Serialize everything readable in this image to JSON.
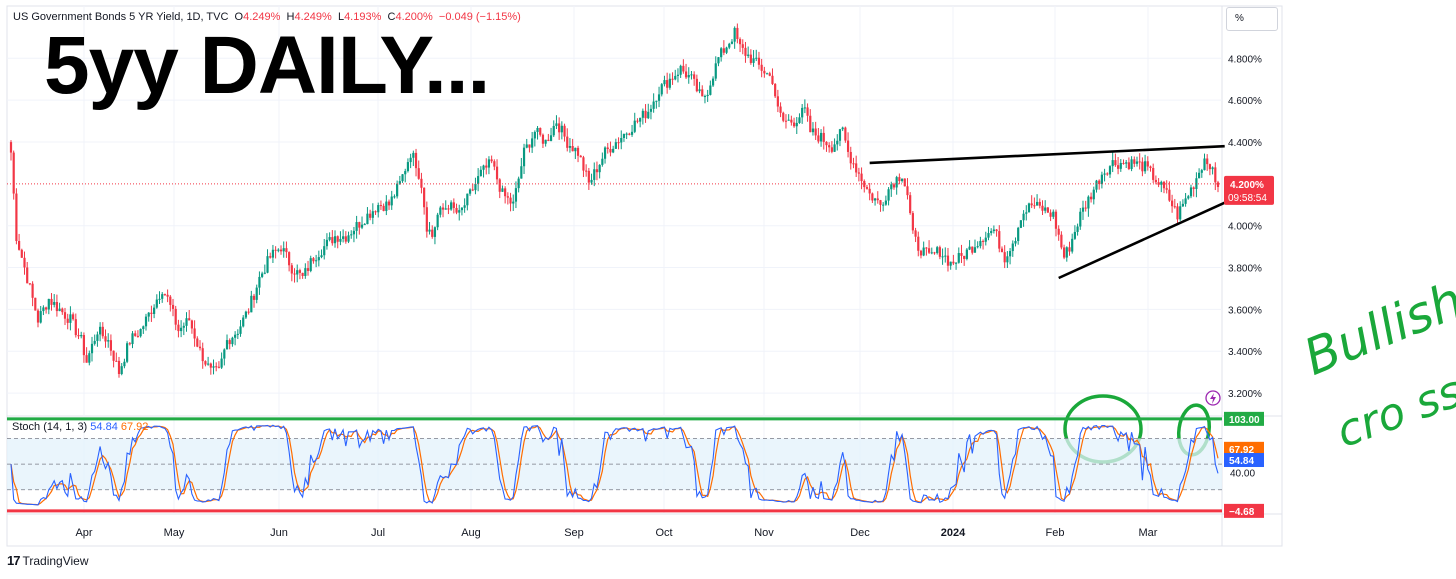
{
  "header": {
    "symbol": "US Government Bonds 5 YR Yield, 1D, TVC",
    "o_label": "O",
    "o_value": "4.249%",
    "h_label": "H",
    "h_value": "4.249%",
    "l_label": "L",
    "l_value": "4.193%",
    "c_label": "C",
    "c_value": "4.200%",
    "change": "−0.049 (−1.15%)"
  },
  "annotation_title": "5yy DAILY...",
  "handwritten_note": [
    "Bullish",
    "cro ss..."
  ],
  "unit_button": "%",
  "brand": {
    "logo": "17",
    "name": "TradingView"
  },
  "colors": {
    "up": "#089981",
    "down": "#f23645",
    "k_line": "#2962ff",
    "d_line": "#ff6d00",
    "upper_line": "#22ab45",
    "lower_line": "#f23645",
    "note": "#1aa83a"
  },
  "chart_data": [
    {
      "type": "candlestick",
      "ylim": [
        3.1,
        5.05
      ],
      "y_ticks": [
        "4.800%",
        "4.600%",
        "4.400%",
        "4.000%",
        "3.800%",
        "3.600%",
        "3.400%",
        "3.200%"
      ],
      "y_tick_values": [
        4.8,
        4.6,
        4.4,
        4.0,
        3.8,
        3.6,
        3.4,
        3.2
      ],
      "x_ticks": [
        "Apr",
        "May",
        "Jun",
        "Jul",
        "Aug",
        "Sep",
        "Oct",
        "Nov",
        "Dec",
        "2024",
        "Feb",
        "Mar"
      ],
      "last_price": 4.2,
      "last_price_label": "4.200%",
      "countdown": "09:58:54",
      "close_path": [
        [
          0,
          4.35
        ],
        [
          2,
          3.95
        ],
        [
          6,
          3.75
        ],
        [
          10,
          3.55
        ],
        [
          14,
          3.65
        ],
        [
          18,
          3.6
        ],
        [
          22,
          3.55
        ],
        [
          26,
          3.45
        ],
        [
          28,
          3.35
        ],
        [
          32,
          3.5
        ],
        [
          36,
          3.45
        ],
        [
          40,
          3.3
        ],
        [
          44,
          3.45
        ],
        [
          48,
          3.5
        ],
        [
          52,
          3.6
        ],
        [
          56,
          3.7
        ],
        [
          58,
          3.65
        ],
        [
          62,
          3.5
        ],
        [
          66,
          3.55
        ],
        [
          70,
          3.4
        ],
        [
          74,
          3.3
        ],
        [
          77,
          3.3
        ],
        [
          80,
          3.45
        ],
        [
          84,
          3.5
        ],
        [
          88,
          3.6
        ],
        [
          92,
          3.75
        ],
        [
          96,
          3.85
        ],
        [
          100,
          3.9
        ],
        [
          104,
          3.8
        ],
        [
          108,
          3.75
        ],
        [
          112,
          3.85
        ],
        [
          116,
          3.9
        ],
        [
          120,
          3.95
        ],
        [
          124,
          3.95
        ],
        [
          128,
          4.0
        ],
        [
          132,
          4.05
        ],
        [
          136,
          4.1
        ],
        [
          140,
          4.1
        ],
        [
          144,
          4.2
        ],
        [
          148,
          4.35
        ],
        [
          150,
          4.3
        ],
        [
          152,
          4.2
        ],
        [
          154,
          4.0
        ],
        [
          156,
          3.95
        ],
        [
          158,
          4.05
        ],
        [
          162,
          4.1
        ],
        [
          166,
          4.05
        ],
        [
          170,
          4.15
        ],
        [
          174,
          4.25
        ],
        [
          178,
          4.3
        ],
        [
          182,
          4.15
        ],
        [
          186,
          4.1
        ],
        [
          190,
          4.35
        ],
        [
          194,
          4.45
        ],
        [
          198,
          4.4
        ],
        [
          202,
          4.5
        ],
        [
          206,
          4.4
        ],
        [
          210,
          4.35
        ],
        [
          214,
          4.2
        ],
        [
          216,
          4.25
        ],
        [
          220,
          4.35
        ],
        [
          224,
          4.4
        ],
        [
          228,
          4.45
        ],
        [
          232,
          4.5
        ],
        [
          236,
          4.55
        ],
        [
          240,
          4.65
        ],
        [
          244,
          4.7
        ],
        [
          248,
          4.75
        ],
        [
          252,
          4.7
        ],
        [
          256,
          4.6
        ],
        [
          258,
          4.65
        ],
        [
          262,
          4.8
        ],
        [
          266,
          4.88
        ],
        [
          268,
          4.92
        ],
        [
          270,
          4.85
        ],
        [
          274,
          4.8
        ],
        [
          278,
          4.75
        ],
        [
          282,
          4.7
        ],
        [
          284,
          4.55
        ],
        [
          286,
          4.5
        ],
        [
          290,
          4.5
        ],
        [
          294,
          4.55
        ],
        [
          296,
          4.45
        ],
        [
          300,
          4.42
        ],
        [
          304,
          4.38
        ],
        [
          308,
          4.45
        ],
        [
          310,
          4.35
        ],
        [
          312,
          4.3
        ],
        [
          314,
          4.25
        ],
        [
          316,
          4.2
        ],
        [
          318,
          4.15
        ],
        [
          322,
          4.1
        ],
        [
          326,
          4.2
        ],
        [
          330,
          4.25
        ],
        [
          332,
          4.15
        ],
        [
          334,
          3.95
        ],
        [
          336,
          3.9
        ],
        [
          340,
          3.85
        ],
        [
          344,
          3.88
        ],
        [
          348,
          3.82
        ],
        [
          352,
          3.85
        ],
        [
          356,
          3.9
        ],
        [
          360,
          3.95
        ],
        [
          364,
          3.98
        ],
        [
          368,
          3.85
        ],
        [
          372,
          3.95
        ],
        [
          374,
          4.05
        ],
        [
          378,
          4.1
        ],
        [
          382,
          4.08
        ],
        [
          386,
          4.05
        ],
        [
          388,
          3.95
        ],
        [
          390,
          3.85
        ],
        [
          392,
          3.9
        ],
        [
          396,
          4.05
        ],
        [
          400,
          4.15
        ],
        [
          404,
          4.25
        ],
        [
          408,
          4.3
        ],
        [
          412,
          4.3
        ],
        [
          416,
          4.3
        ],
        [
          420,
          4.28
        ],
        [
          424,
          4.22
        ],
        [
          428,
          4.15
        ],
        [
          432,
          4.05
        ],
        [
          434,
          4.1
        ],
        [
          438,
          4.2
        ],
        [
          442,
          4.32
        ],
        [
          444,
          4.3
        ],
        [
          446,
          4.2
        ]
      ],
      "trendlines": [
        {
          "name": "upper-resistance",
          "from": [
            318,
            4.3
          ],
          "to": [
            448,
            4.38
          ]
        },
        {
          "name": "lower-support",
          "from": [
            388,
            3.75
          ],
          "to": [
            448,
            4.11
          ]
        }
      ]
    },
    {
      "type": "line",
      "indicator": "Stoch",
      "params": "(14, 1, 3)",
      "k_value": "54.84",
      "d_value": "67.92",
      "ylim": [
        -6,
        104
      ],
      "levels": {
        "upper": 80,
        "middle": 50,
        "lower": 20
      },
      "upper_line_value": 103,
      "upper_line_label": "103.00",
      "lower_line_value": -4.68,
      "lower_line_label": "−4.68",
      "y_tick_label": "40.00",
      "y_tick_value": 40,
      "d_value_label": "67.92",
      "k_value_label": "54.84"
    }
  ]
}
